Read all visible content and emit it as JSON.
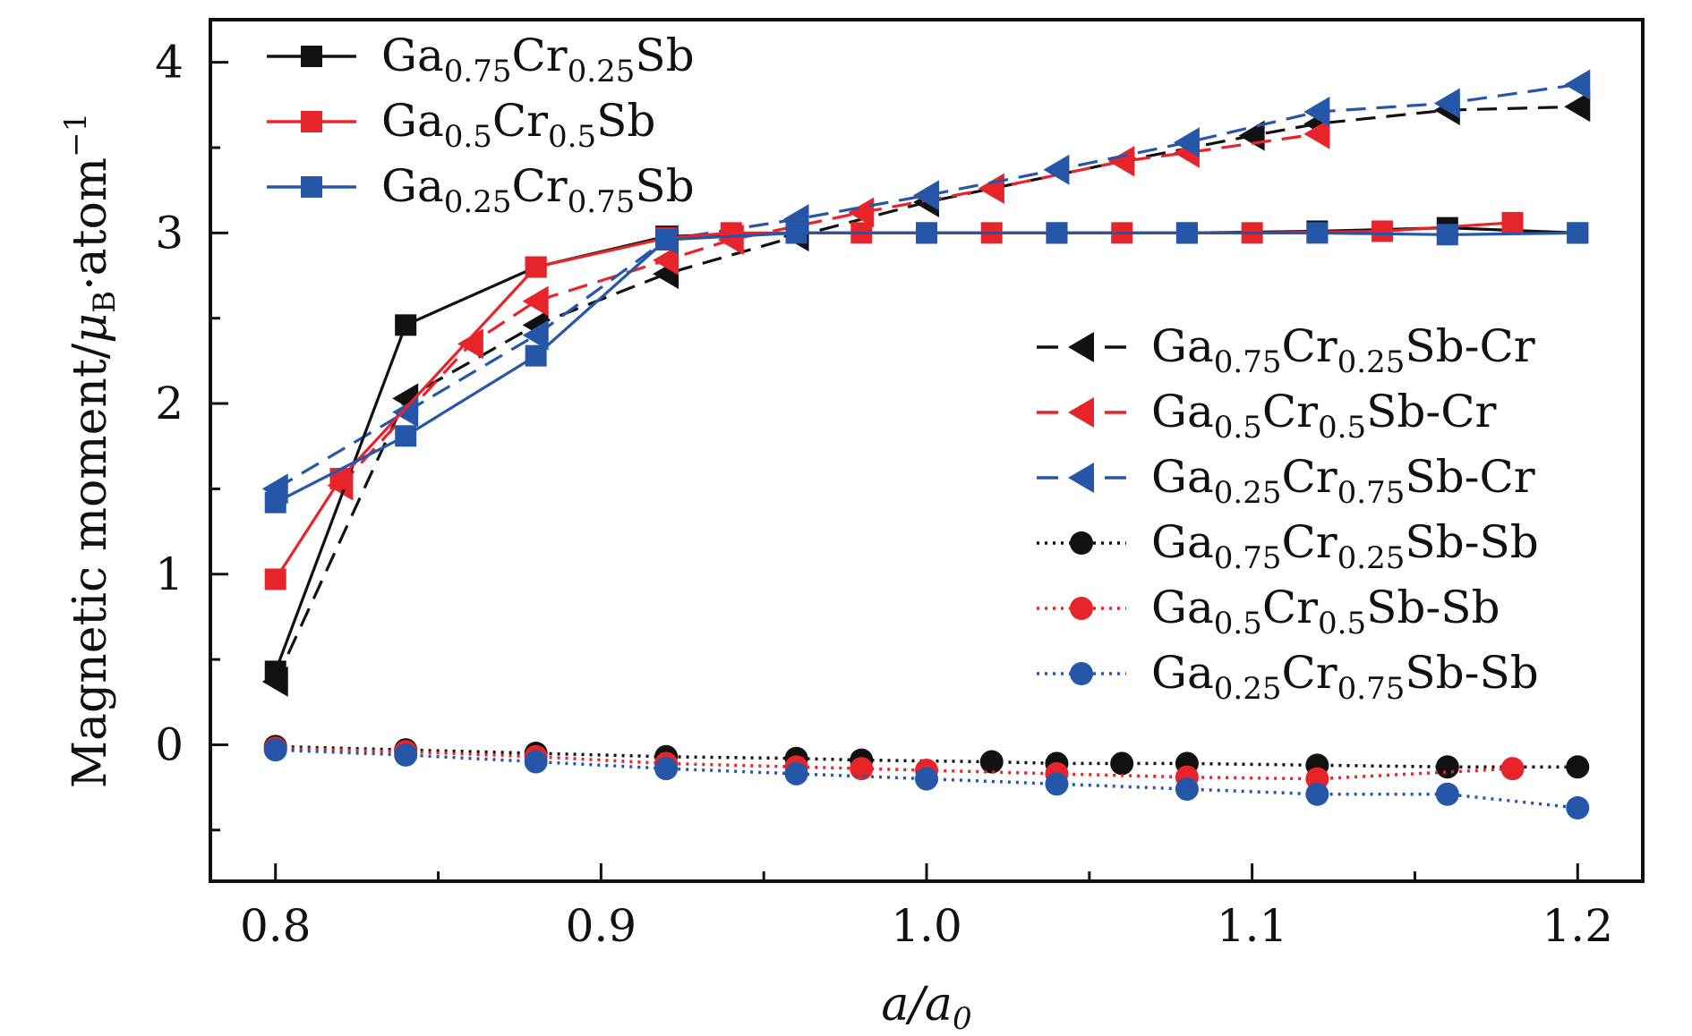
{
  "chart_data": {
    "type": "line",
    "title": "",
    "xlabel": "a/a0",
    "ylabel": "Magnetic moment/μB·atom−1",
    "xlim": [
      0.78,
      1.22
    ],
    "ylim": [
      -0.8,
      4.25
    ],
    "xticks": [
      0.8,
      0.9,
      1.0,
      1.1,
      1.2
    ],
    "xtick_labels": [
      "0.8",
      "0.9",
      "1.0",
      "1.1",
      "1.2"
    ],
    "yticks": [
      0,
      1,
      2,
      3,
      4
    ],
    "ytick_labels": [
      "0",
      "1",
      "2",
      "3",
      "4"
    ],
    "grid": false,
    "series": [
      {
        "name": "Ga0.75Cr0.25Sb",
        "legend": {
          "base": "Ga",
          "sub1": "0.75",
          "mid": "Cr",
          "sub2": "0.25",
          "suffix": "Sb"
        },
        "color": "#111111",
        "line": "solid",
        "marker": "square",
        "x": [
          0.8,
          0.84,
          0.88,
          0.92,
          0.96,
          1.0,
          1.04,
          1.08,
          1.12,
          1.16,
          1.2
        ],
        "y": [
          0.43,
          2.46,
          2.8,
          2.98,
          3.0,
          3.0,
          3.0,
          3.0,
          3.01,
          3.03,
          3.0
        ]
      },
      {
        "name": "Ga0.5Cr0.5Sb",
        "legend": {
          "base": "Ga",
          "sub1": "0.5",
          "mid": "Cr",
          "sub2": "0.5",
          "suffix": "Sb"
        },
        "color": "#e8242b",
        "line": "solid",
        "marker": "square",
        "x": [
          0.8,
          0.82,
          0.88,
          0.92,
          0.94,
          0.98,
          1.02,
          1.06,
          1.1,
          1.14,
          1.18
        ],
        "y": [
          0.97,
          1.56,
          2.8,
          2.97,
          3.0,
          3.0,
          3.0,
          3.0,
          3.0,
          3.01,
          3.06
        ]
      },
      {
        "name": "Ga0.25Cr0.75Sb",
        "legend": {
          "base": "Ga",
          "sub1": "0.25",
          "mid": "Cr",
          "sub2": "0.75",
          "suffix": "Sb"
        },
        "color": "#2656a8",
        "line": "solid",
        "marker": "square",
        "x": [
          0.8,
          0.84,
          0.88,
          0.92,
          0.96,
          1.0,
          1.04,
          1.08,
          1.12,
          1.16,
          1.2
        ],
        "y": [
          1.42,
          1.81,
          2.28,
          2.96,
          3.0,
          3.0,
          3.0,
          3.0,
          3.0,
          2.99,
          3.0
        ]
      },
      {
        "name": "Ga0.75Cr0.25Sb-Cr",
        "legend": {
          "base": "Ga",
          "sub1": "0.75",
          "mid": "Cr",
          "sub2": "0.25",
          "suffix": "Sb-Cr"
        },
        "color": "#111111",
        "line": "dashed",
        "marker": "triangle-left",
        "x": [
          0.8,
          0.84,
          0.88,
          0.92,
          0.96,
          1.0,
          1.02,
          1.06,
          1.1,
          1.12,
          1.16,
          1.2
        ],
        "y": [
          0.37,
          2.03,
          2.46,
          2.76,
          2.98,
          3.18,
          3.26,
          3.42,
          3.57,
          3.64,
          3.72,
          3.74
        ]
      },
      {
        "name": "Ga0.5Cr0.5Sb-Cr",
        "legend": {
          "base": "Ga",
          "sub1": "0.5",
          "mid": "Cr",
          "sub2": "0.5",
          "suffix": "Sb-Cr"
        },
        "color": "#e8242b",
        "line": "dashed",
        "marker": "triangle-left",
        "x": [
          0.82,
          0.86,
          0.88,
          0.92,
          0.94,
          0.98,
          1.02,
          1.06,
          1.08,
          1.12
        ],
        "y": [
          1.52,
          2.35,
          2.6,
          2.84,
          2.96,
          3.12,
          3.26,
          3.42,
          3.47,
          3.58
        ]
      },
      {
        "name": "Ga0.25Cr0.75Sb-Cr",
        "legend": {
          "base": "Ga",
          "sub1": "0.25",
          "mid": "Cr",
          "sub2": "0.75",
          "suffix": "Sb-Cr"
        },
        "color": "#2656a8",
        "line": "dashed",
        "marker": "triangle-left",
        "x": [
          0.8,
          0.84,
          0.88,
          0.92,
          0.96,
          1.0,
          1.04,
          1.08,
          1.12,
          1.16,
          1.2
        ],
        "y": [
          1.5,
          1.95,
          2.4,
          2.96,
          3.08,
          3.22,
          3.37,
          3.53,
          3.71,
          3.76,
          3.87
        ]
      },
      {
        "name": "Ga0.75Cr0.25Sb-Sb",
        "legend": {
          "base": "Ga",
          "sub1": "0.75",
          "mid": "Cr",
          "sub2": "0.25",
          "suffix": "Sb-Sb"
        },
        "color": "#111111",
        "line": "dotted",
        "marker": "circle",
        "x": [
          0.8,
          0.84,
          0.88,
          0.92,
          0.96,
          0.98,
          1.02,
          1.04,
          1.06,
          1.08,
          1.12,
          1.16,
          1.2
        ],
        "y": [
          -0.01,
          -0.03,
          -0.05,
          -0.07,
          -0.08,
          -0.09,
          -0.1,
          -0.11,
          -0.11,
          -0.11,
          -0.12,
          -0.13,
          -0.13
        ]
      },
      {
        "name": "Ga0.5Cr0.5Sb-Sb",
        "legend": {
          "base": "Ga",
          "sub1": "0.5",
          "mid": "Cr",
          "sub2": "0.5",
          "suffix": "Sb-Sb"
        },
        "color": "#e8242b",
        "line": "dotted",
        "marker": "circle",
        "x": [
          0.8,
          0.84,
          0.88,
          0.92,
          0.96,
          0.98,
          1.0,
          1.04,
          1.08,
          1.12,
          1.18
        ],
        "y": [
          -0.02,
          -0.04,
          -0.07,
          -0.11,
          -0.13,
          -0.14,
          -0.15,
          -0.17,
          -0.19,
          -0.2,
          -0.14
        ]
      },
      {
        "name": "Ga0.25Cr0.75Sb-Sb",
        "legend": {
          "base": "Ga",
          "sub1": "0.25",
          "mid": "Cr",
          "sub2": "0.75",
          "suffix": "Sb-Sb"
        },
        "color": "#2656a8",
        "line": "dotted",
        "marker": "circle",
        "x": [
          0.8,
          0.84,
          0.88,
          0.92,
          0.96,
          1.0,
          1.04,
          1.08,
          1.12,
          1.16,
          1.2
        ],
        "y": [
          -0.03,
          -0.06,
          -0.1,
          -0.14,
          -0.17,
          -0.2,
          -0.23,
          -0.26,
          -0.29,
          -0.29,
          -0.37
        ]
      }
    ]
  }
}
